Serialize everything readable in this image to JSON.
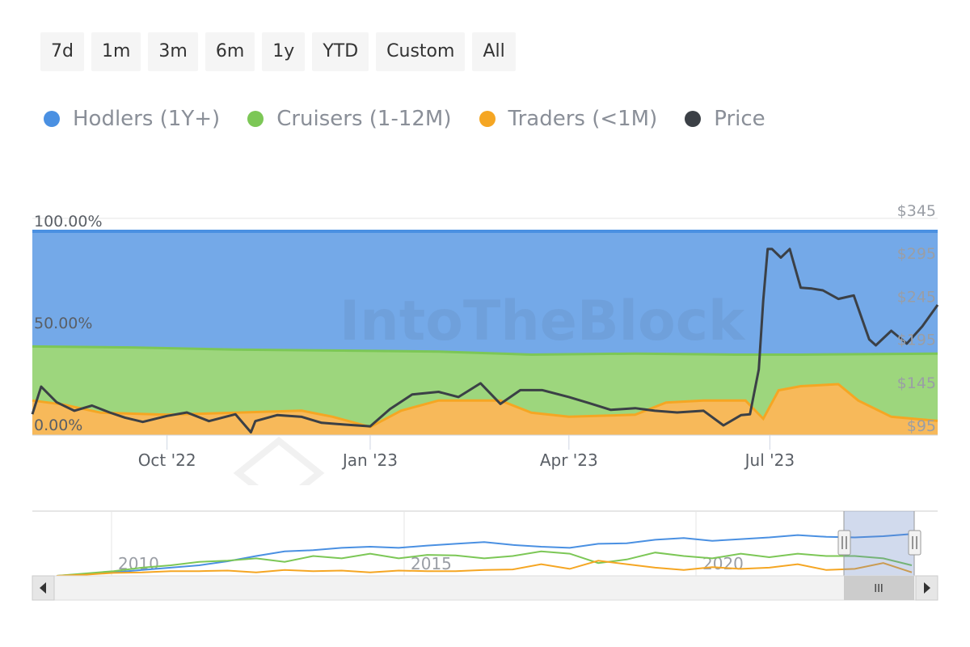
{
  "range_selector": {
    "buttons": [
      "7d",
      "1m",
      "3m",
      "6m",
      "1y",
      "YTD",
      "Custom",
      "All"
    ]
  },
  "legend": [
    {
      "label": "Hodlers (1Y+)",
      "color": "#4a90e2",
      "icon": "hodlers-dot"
    },
    {
      "label": "Cruisers (1-12M)",
      "color": "#7cc756",
      "icon": "cruisers-dot"
    },
    {
      "label": "Traders (<1M)",
      "color": "#f5a623",
      "icon": "traders-dot"
    },
    {
      "label": "Price",
      "color": "#3b4046",
      "icon": "price-dot"
    }
  ],
  "watermark": "IntoTheBlock",
  "chart_data": {
    "type": "area",
    "stacking": "percent",
    "x_range": [
      "2022-08-01",
      "2023-09-15"
    ],
    "x_ticks": [
      "Oct '22",
      "Jan '23",
      "Apr '23",
      "Jul '23"
    ],
    "x_tick_dates": [
      "2022-10-01",
      "2023-01-01",
      "2023-04-01",
      "2023-07-01"
    ],
    "y_left_ticks": [
      "100.00%",
      "50.00%",
      "0.00%"
    ],
    "y_left_range": [
      0,
      100
    ],
    "y_right_ticks": [
      "$345",
      "$295",
      "$245",
      "$195",
      "$145",
      "$95"
    ],
    "y_right_range": [
      95,
      345
    ],
    "grid": true,
    "legend_position": "top",
    "cruisers_top_percent": {
      "dates": [
        "2022-08-01",
        "2022-09-15",
        "2022-11-01",
        "2022-12-15",
        "2023-02-01",
        "2023-03-15",
        "2023-05-01",
        "2023-06-15",
        "2023-07-15",
        "2023-09-15"
      ],
      "values": [
        43.5,
        43.0,
        42.0,
        41.5,
        41.0,
        39.5,
        40.0,
        39.5,
        39.5,
        40.0
      ]
    },
    "traders_top_percent": {
      "dates": [
        "2022-08-01",
        "2022-08-15",
        "2022-09-01",
        "2022-10-01",
        "2022-11-01",
        "2022-12-01",
        "2022-12-15",
        "2023-01-01",
        "2023-01-15",
        "2023-02-01",
        "2023-03-01",
        "2023-03-15",
        "2023-04-01",
        "2023-05-01",
        "2023-05-15",
        "2023-06-01",
        "2023-06-20",
        "2023-06-28",
        "2023-07-01",
        "2023-07-05",
        "2023-07-15",
        "2023-08-01",
        "2023-08-10",
        "2023-08-25",
        "2023-09-15"
      ],
      "values": [
        17,
        15,
        11,
        10,
        11,
        12,
        9,
        4,
        12,
        17,
        17,
        11,
        9,
        10,
        16,
        17,
        17,
        8,
        14,
        22,
        24,
        25,
        17,
        9,
        7
      ]
    },
    "series": [
      {
        "name": "Price",
        "dates": [
          "2022-08-01",
          "2022-08-05",
          "2022-08-12",
          "2022-08-20",
          "2022-08-28",
          "2022-09-05",
          "2022-09-12",
          "2022-09-20",
          "2022-10-01",
          "2022-10-10",
          "2022-10-20",
          "2022-11-01",
          "2022-11-08",
          "2022-11-10",
          "2022-11-20",
          "2022-12-01",
          "2022-12-10",
          "2022-12-20",
          "2023-01-01",
          "2023-01-10",
          "2023-01-20",
          "2023-02-01",
          "2023-02-10",
          "2023-02-20",
          "2023-03-01",
          "2023-03-10",
          "2023-03-20",
          "2023-04-01",
          "2023-04-10",
          "2023-04-20",
          "2023-05-01",
          "2023-05-10",
          "2023-05-20",
          "2023-06-01",
          "2023-06-10",
          "2023-06-18",
          "2023-06-22",
          "2023-06-26",
          "2023-06-28",
          "2023-06-30",
          "2023-07-02",
          "2023-07-06",
          "2023-07-10",
          "2023-07-15",
          "2023-07-20",
          "2023-07-25",
          "2023-08-01",
          "2023-08-08",
          "2023-08-15",
          "2023-08-18",
          "2023-08-25",
          "2023-09-01",
          "2023-09-08",
          "2023-09-15"
        ],
        "values": [
          108,
          140,
          122,
          112,
          118,
          110,
          104,
          99,
          106,
          110,
          100,
          108,
          87,
          100,
          107,
          105,
          98,
          96,
          94,
          114,
          131,
          134,
          128,
          144,
          120,
          136,
          136,
          128,
          121,
          113,
          115,
          112,
          110,
          112,
          95,
          107,
          108,
          160,
          240,
          300,
          300,
          290,
          300,
          255,
          254,
          252,
          242,
          246,
          195,
          188,
          205,
          190,
          210,
          235
        ]
      }
    ]
  },
  "navigator": {
    "year_labels": [
      "2010",
      "2015",
      "2020"
    ],
    "scroll_grip": "III",
    "hodlers": [
      0,
      3,
      6,
      10,
      14,
      18,
      25,
      34,
      42,
      44,
      48,
      50,
      48,
      52,
      55,
      58,
      53,
      50,
      48,
      55,
      56,
      62,
      65,
      60,
      63,
      66,
      70,
      67,
      66,
      68,
      72
    ],
    "cruisers": [
      0,
      4,
      8,
      14,
      18,
      24,
      26,
      30,
      24,
      34,
      30,
      38,
      30,
      36,
      35,
      30,
      34,
      42,
      38,
      22,
      28,
      40,
      34,
      30,
      38,
      32,
      38,
      34,
      34,
      30,
      18
    ],
    "traders": [
      0,
      2,
      5,
      6,
      8,
      8,
      9,
      6,
      10,
      8,
      9,
      6,
      9,
      8,
      8,
      10,
      11,
      20,
      12,
      26,
      20,
      14,
      10,
      15,
      12,
      14,
      20,
      10,
      12,
      22,
      6
    ]
  }
}
